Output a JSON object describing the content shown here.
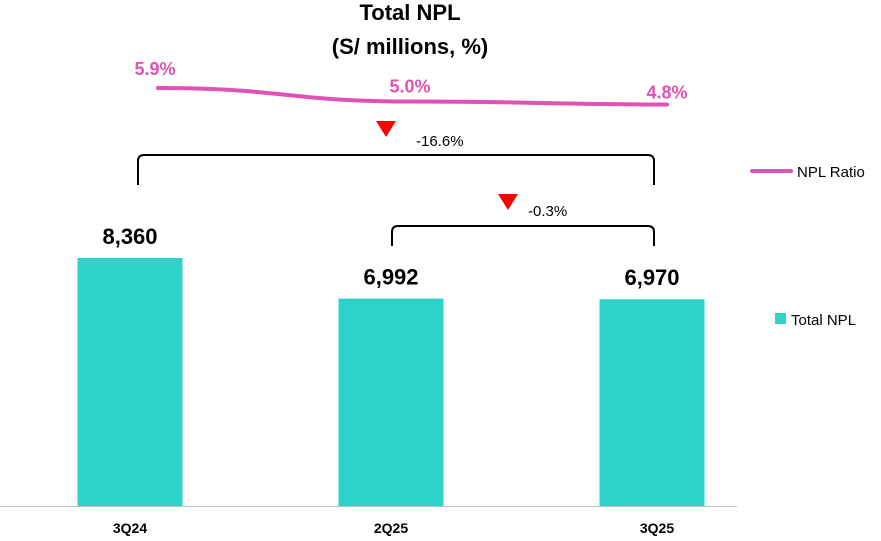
{
  "chart_data": {
    "type": "bar",
    "title": "Total NPL",
    "subtitle": "(S/ millions, %)",
    "categories": [
      "3Q24",
      "2Q25",
      "3Q25"
    ],
    "series": [
      {
        "name": "Total NPL",
        "type": "bar",
        "values": [
          8360,
          6992,
          6970
        ],
        "labels": [
          "8,360",
          "6,992",
          "6,970"
        ],
        "color": "#2DD2C8"
      },
      {
        "name": "NPL Ratio",
        "type": "line",
        "values": [
          5.9,
          5.0,
          4.8
        ],
        "labels": [
          "5.9%",
          "5.0%",
          "4.8%"
        ],
        "color": "#E052B4"
      }
    ],
    "ylim": [
      0,
      10000
    ],
    "grid": false,
    "legend_position": "right",
    "annotations": [
      {
        "from": "3Q24",
        "to": "3Q25",
        "label": "-16.6%",
        "direction": "down"
      },
      {
        "from": "2Q25",
        "to": "3Q25",
        "label": "-0.3%",
        "direction": "down"
      }
    ],
    "marker_color": "#FF0000",
    "axis_color": "#BFBFBF",
    "bracket_color": "#000000"
  }
}
